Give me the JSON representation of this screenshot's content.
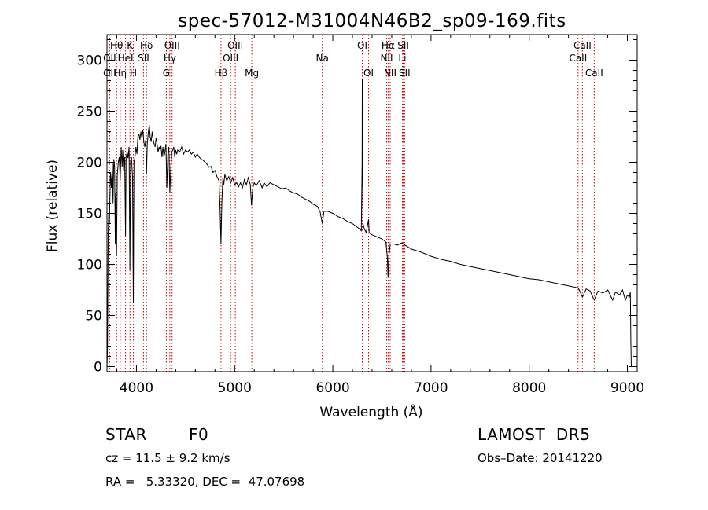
{
  "chart_data": {
    "type": "line",
    "title": "spec-57012-M31004N46B2_sp09-169.fits",
    "xlabel": "Wavelength (Å)",
    "ylabel": "Flux (relative)",
    "xlim": [
      3700,
      9100
    ],
    "ylim": [
      -5,
      325
    ],
    "x_ticks": [
      4000,
      5000,
      6000,
      7000,
      8000,
      9000
    ],
    "y_ticks": [
      0,
      50,
      100,
      150,
      200,
      250,
      300
    ],
    "grid": false,
    "line_color": "#000000",
    "marker_color": "#cc0000",
    "spectrum": [
      [
        3700,
        0
      ],
      [
        3705,
        15
      ],
      [
        3712,
        128
      ],
      [
        3718,
        150
      ],
      [
        3725,
        140
      ],
      [
        3735,
        190
      ],
      [
        3745,
        175
      ],
      [
        3755,
        200
      ],
      [
        3762,
        160
      ],
      [
        3770,
        203
      ],
      [
        3778,
        195
      ],
      [
        3785,
        120
      ],
      [
        3790,
        170
      ],
      [
        3797,
        108
      ],
      [
        3805,
        188
      ],
      [
        3815,
        200
      ],
      [
        3825,
        205
      ],
      [
        3835,
        182
      ],
      [
        3845,
        215
      ],
      [
        3855,
        195
      ],
      [
        3860,
        212
      ],
      [
        3870,
        192
      ],
      [
        3880,
        205
      ],
      [
        3889,
        128
      ],
      [
        3895,
        205
      ],
      [
        3905,
        210
      ],
      [
        3915,
        204
      ],
      [
        3925,
        215
      ],
      [
        3933,
        95
      ],
      [
        3940,
        200
      ],
      [
        3950,
        205
      ],
      [
        3960,
        185
      ],
      [
        3968,
        62
      ],
      [
        3975,
        200
      ],
      [
        3985,
        205
      ],
      [
        3995,
        215
      ],
      [
        4005,
        208
      ],
      [
        4015,
        225
      ],
      [
        4025,
        228
      ],
      [
        4035,
        222
      ],
      [
        4045,
        230
      ],
      [
        4055,
        224
      ],
      [
        4065,
        232
      ],
      [
        4075,
        220
      ],
      [
        4085,
        215
      ],
      [
        4095,
        222
      ],
      [
        4102,
        188
      ],
      [
        4110,
        218
      ],
      [
        4120,
        228
      ],
      [
        4130,
        237
      ],
      [
        4140,
        225
      ],
      [
        4150,
        220
      ],
      [
        4160,
        230
      ],
      [
        4170,
        222
      ],
      [
        4180,
        218
      ],
      [
        4190,
        215
      ],
      [
        4200,
        224
      ],
      [
        4210,
        218
      ],
      [
        4220,
        210
      ],
      [
        4230,
        215
      ],
      [
        4240,
        212
      ],
      [
        4250,
        216
      ],
      [
        4260,
        205
      ],
      [
        4270,
        215
      ],
      [
        4280,
        205
      ],
      [
        4290,
        210
      ],
      [
        4300,
        218
      ],
      [
        4310,
        175
      ],
      [
        4320,
        208
      ],
      [
        4330,
        215
      ],
      [
        4340,
        170
      ],
      [
        4350,
        195
      ],
      [
        4360,
        210
      ],
      [
        4370,
        212
      ],
      [
        4380,
        215
      ],
      [
        4390,
        205
      ],
      [
        4400,
        212
      ],
      [
        4410,
        208
      ],
      [
        4420,
        212
      ],
      [
        4440,
        210
      ],
      [
        4460,
        215
      ],
      [
        4480,
        208
      ],
      [
        4500,
        212
      ],
      [
        4520,
        210
      ],
      [
        4540,
        212
      ],
      [
        4560,
        208
      ],
      [
        4580,
        210
      ],
      [
        4600,
        205
      ],
      [
        4620,
        208
      ],
      [
        4640,
        205
      ],
      [
        4660,
        203
      ],
      [
        4680,
        202
      ],
      [
        4700,
        200
      ],
      [
        4720,
        198
      ],
      [
        4740,
        195
      ],
      [
        4760,
        196
      ],
      [
        4780,
        190
      ],
      [
        4800,
        192
      ],
      [
        4820,
        186
      ],
      [
        4840,
        182
      ],
      [
        4850,
        160
      ],
      [
        4861,
        120
      ],
      [
        4870,
        160
      ],
      [
        4880,
        185
      ],
      [
        4890,
        178
      ],
      [
        4900,
        188
      ],
      [
        4920,
        182
      ],
      [
        4940,
        186
      ],
      [
        4960,
        180
      ],
      [
        4980,
        185
      ],
      [
        5000,
        178
      ],
      [
        5020,
        180
      ],
      [
        5040,
        176
      ],
      [
        5060,
        180
      ],
      [
        5080,
        175
      ],
      [
        5100,
        183
      ],
      [
        5120,
        178
      ],
      [
        5140,
        185
      ],
      [
        5160,
        178
      ],
      [
        5172,
        158
      ],
      [
        5185,
        175
      ],
      [
        5200,
        180
      ],
      [
        5220,
        177
      ],
      [
        5250,
        182
      ],
      [
        5280,
        175
      ],
      [
        5300,
        180
      ],
      [
        5330,
        176
      ],
      [
        5360,
        180
      ],
      [
        5400,
        178
      ],
      [
        5440,
        176
      ],
      [
        5480,
        174
      ],
      [
        5520,
        175
      ],
      [
        5560,
        172
      ],
      [
        5600,
        170
      ],
      [
        5640,
        169
      ],
      [
        5680,
        166
      ],
      [
        5720,
        164
      ],
      [
        5760,
        162
      ],
      [
        5800,
        159
      ],
      [
        5840,
        157
      ],
      [
        5870,
        152
      ],
      [
        5893,
        140
      ],
      [
        5910,
        152
      ],
      [
        5950,
        152
      ],
      [
        6000,
        150
      ],
      [
        6050,
        147
      ],
      [
        6100,
        145
      ],
      [
        6150,
        142
      ],
      [
        6200,
        140
      ],
      [
        6240,
        137
      ],
      [
        6270,
        135
      ],
      [
        6290,
        133
      ],
      [
        6298,
        200
      ],
      [
        6300,
        282
      ],
      [
        6302,
        215
      ],
      [
        6308,
        140
      ],
      [
        6320,
        135
      ],
      [
        6340,
        131
      ],
      [
        6364,
        144
      ],
      [
        6370,
        131
      ],
      [
        6400,
        129
      ],
      [
        6450,
        127
      ],
      [
        6500,
        125
      ],
      [
        6540,
        122
      ],
      [
        6555,
        108
      ],
      [
        6563,
        87
      ],
      [
        6570,
        108
      ],
      [
        6585,
        120
      ],
      [
        6620,
        120
      ],
      [
        6660,
        119
      ],
      [
        6700,
        121
      ],
      [
        6750,
        118
      ],
      [
        6800,
        115
      ],
      [
        6900,
        112
      ],
      [
        7000,
        108
      ],
      [
        7100,
        105
      ],
      [
        7200,
        103
      ],
      [
        7300,
        100
      ],
      [
        7400,
        98
      ],
      [
        7500,
        96
      ],
      [
        7600,
        94
      ],
      [
        7700,
        92
      ],
      [
        7800,
        90
      ],
      [
        7900,
        88
      ],
      [
        8000,
        86
      ],
      [
        8100,
        85
      ],
      [
        8200,
        83
      ],
      [
        8300,
        81
      ],
      [
        8400,
        79
      ],
      [
        8500,
        77
      ],
      [
        8542,
        68
      ],
      [
        8580,
        76
      ],
      [
        8620,
        74
      ],
      [
        8662,
        65
      ],
      [
        8700,
        74
      ],
      [
        8750,
        72
      ],
      [
        8800,
        75
      ],
      [
        8850,
        65
      ],
      [
        8880,
        73
      ],
      [
        8920,
        70
      ],
      [
        8950,
        75
      ],
      [
        8980,
        65
      ],
      [
        9000,
        70
      ],
      [
        9020,
        68
      ],
      [
        9030,
        73
      ],
      [
        9035,
        25
      ],
      [
        9040,
        0
      ]
    ],
    "line_markers": [
      {
        "label": "Hθ",
        "x": 3798,
        "row": 1
      },
      {
        "label": "OII",
        "x": 3727,
        "row": 2
      },
      {
        "label": "OII",
        "x": 3727,
        "row": 3
      },
      {
        "label": "Hη",
        "x": 3835,
        "row": 3
      },
      {
        "label": "HeI",
        "x": 3889,
        "row": 2
      },
      {
        "label": "K",
        "x": 3934,
        "row": 1
      },
      {
        "label": "H",
        "x": 3969,
        "row": 3
      },
      {
        "label": "Hδ",
        "x": 4102,
        "row": 1
      },
      {
        "label": "SII",
        "x": 4072,
        "row": 2
      },
      {
        "label": "OIII",
        "x": 4363,
        "row": 1
      },
      {
        "label": "Hγ",
        "x": 4340,
        "row": 2
      },
      {
        "label": "G",
        "x": 4304,
        "row": 3
      },
      {
        "label": "Hβ",
        "x": 4861,
        "row": 3
      },
      {
        "label": "OIII",
        "x": 5007,
        "row": 1
      },
      {
        "label": "OIII",
        "x": 4959,
        "row": 2
      },
      {
        "label": "Mg",
        "x": 5175,
        "row": 3
      },
      {
        "label": "Na",
        "x": 5893,
        "row": 2
      },
      {
        "label": "OI",
        "x": 6300,
        "row": 1
      },
      {
        "label": "OI",
        "x": 6364,
        "row": 3
      },
      {
        "label": "Hα",
        "x": 6563,
        "row": 1
      },
      {
        "label": "SII",
        "x": 6717,
        "row": 1
      },
      {
        "label": "NII",
        "x": 6548,
        "row": 2
      },
      {
        "label": "Li",
        "x": 6708,
        "row": 2
      },
      {
        "label": "NII",
        "x": 6584,
        "row": 3
      },
      {
        "label": "SII",
        "x": 6731,
        "row": 3
      },
      {
        "label": "CaII",
        "x": 8542,
        "row": 1
      },
      {
        "label": "CaII",
        "x": 8498,
        "row": 2
      },
      {
        "label": "CaII",
        "x": 8662,
        "row": 3
      }
    ]
  },
  "info": {
    "class": "STAR",
    "subclass": "F0",
    "survey": "LAMOST  DR5",
    "cz": "cz = 11.5 ± 9.2 km/s",
    "obs_date": "Obs–Date: 20141220",
    "coords": "RA =   5.33320, DEC =  47.07698"
  }
}
